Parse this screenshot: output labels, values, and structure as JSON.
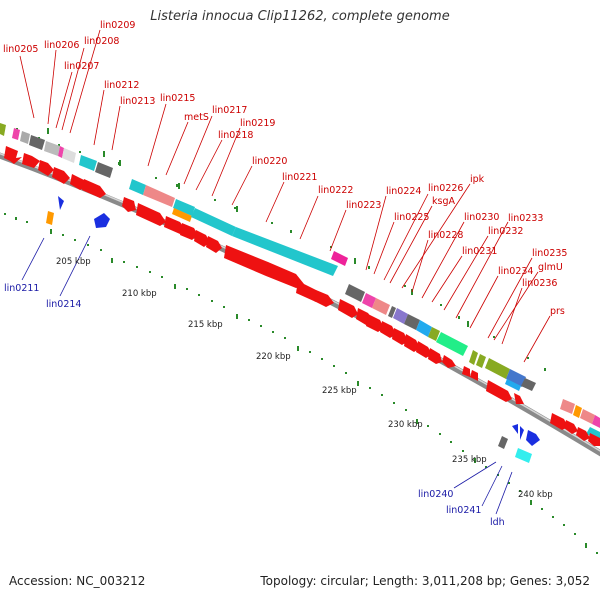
{
  "title": "Listeria innocua Clip11262, complete genome",
  "footer": {
    "accession": "Accession: NC_003212",
    "stats": "Topology: circular; Length: 3,011,208 bp; Genes: 3,052"
  },
  "colors": {
    "forward_gene": "#ee1111",
    "reverse_gene": "#1a2fe0",
    "label_forward": "#cc0000",
    "label_reverse": "#1a1aa6",
    "backbone": "#8a8a8a",
    "tick": "#2a8a2a",
    "cog_cyan": "#22c6cc",
    "cog_gray": "#666666",
    "cog_pink": "#ee66aa",
    "cog_green": "#88aa22",
    "cog_purple": "#8877cc"
  },
  "scale_labels": [
    "205 kbp",
    "210 kbp",
    "215 kbp",
    "220 kbp",
    "225 kbp",
    "230 kbp",
    "235 kbp",
    "240 kbp"
  ],
  "forward_labels": [
    "lin0205",
    "lin0206",
    "lin0207",
    "lin0208",
    "lin0209",
    "lin0212",
    "lin0213",
    "lin0215",
    "metS",
    "lin0217",
    "lin0218",
    "lin0219",
    "lin0220",
    "lin0221",
    "lin0222",
    "lin0223",
    "lin0224",
    "lin0225",
    "lin0226",
    "ksgA",
    "ipk",
    "lin0228",
    "lin0230",
    "lin0231",
    "lin0232",
    "lin0233",
    "lin0234",
    "lin0235",
    "glmU",
    "lin0236",
    "prs"
  ],
  "reverse_labels": [
    "lin0211",
    "lin0214",
    "lin0240",
    "lin0241",
    "ldh"
  ]
}
